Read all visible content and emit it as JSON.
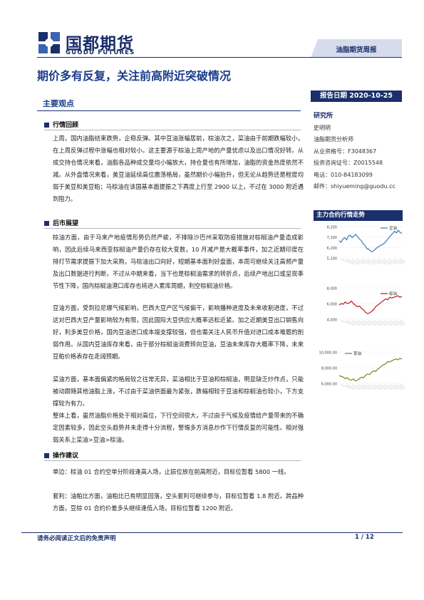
{
  "header": {
    "logo_cn": "国都期货",
    "logo_en": "GUODU FUTURES",
    "tag": "油脂期货周报",
    "title": "期价多有反复，关注前高附近突破情况",
    "colors": {
      "primary": "#1a2f6b",
      "accent": "#1a3c8a"
    }
  },
  "report_date": "报告日期 2020-10-25",
  "analyst": {
    "heading": "研究所",
    "name": "史明明",
    "role": "油脂期货分析师",
    "qualification": "从业资格号：F3048367",
    "consult": "投资咨询证号：Z0015548",
    "phone": "电话：010-84183099",
    "email": "邮件：shiyueming@guodu.cc"
  },
  "chart_section_title": "主力合约行情走势",
  "key_points_title": "主要观点",
  "sections": [
    {
      "title": "行情回顾",
      "paragraphs": [
        "上周，国内油脂结束跌势，企稳反弹。其中豆油涨幅居前，棕油次之，菜油由于前期跌幅较小，在上周反弹过程中涨幅也相对较小。这主要源于棕油上周产地的产量忧虑以及出口情况好转。从成交持仓情况来看，油脂各品种成交量均小幅放大，持仓量也有所增加，油脂的资金热度依然不减。从外盘情况来看，美豆油延续高位震荡格局，虽然期价小幅抬升，但无论从趋势还是程度均弱于美豆和美豆粕；马棕油在该国基本面提振之下再度上行至 2900 以上，不过在 3000 附近遇到阻力。"
      ]
    },
    {
      "title": "后市展望",
      "paragraphs": [
        "棕油方面，由于马来产地疫情形势仍然严峻，不排除沙巴州采取防疫措施对棕榈油产量造成影响，因此后续马来西亚棕榈油产量仍存在较大变数，10 月减产是大概率事件，加之近期印度在排灯节需求提振下加大采购，马棕油出口向好，短期基本面利好盘面，本周可继续关注高频产量及出口数据进行判断。不过从中期来看，当下也是棕榈油需求的转折点，后续产地出口或呈现季节性下降，国内棕榈油港口库存也将进入累库周期，利空棕榈油价格。",
        "豆油方面，受到拉尼娜气候影响，巴西大豆产区气候偏干，影响播种进度及未来收割进度，不过这对巴西大豆产量影响较为有限，因此国际大豆供应大概率远松近紧。加之近期美豆出口销售向好，利多美豆价格，国内豆油进口成本端支撑较强，但也需关注人民币升值对进口成本难题的削弱作用。从国内豆油库存来看，由于部分棕榈油消费转向豆油，豆油未来库存大概率下降，未来豆粕价格表存在走阔预期。",
        "菜油方面，基本面偏紧的格局较之往常无异，菜油相比于豆油和棕榈油，明显缺乏炒作点，只能被动跟随其他油脂上涨，不过由于菜油供面最为紧张，跌幅相较于豆油和棕榈油也较小，下方支撑较为有力。",
        "整体上看，虽然油脂价格处于相对高位，下行空间很大，不过由于气候及疫情给产量带来的不确定因素较多，因此空头趋势并未走得十分流程，警惕多方消息炒作下行情反复的可能性。相对强弱关系上菜油>豆油>棕油。"
      ]
    },
    {
      "title": "操作建议",
      "paragraphs": [
        "单边：棕油 01 合约空单分阶段逢高入场，止损位放在前高附近，目标位暂看 5800 一线。",
        "套利：油粕比方面，油粕比已有明显回落，空头套利可继续参与，目标位暂看 1.8 附近。跨品种方面，豆棕 01 合约价差多头继续逢低入场，目标位暂看 1200 附近。"
      ]
    }
  ],
  "charts": [
    {
      "legend": "豆油",
      "line_color": "#4a7fc1",
      "y_ticks": [
        "8,200",
        "7,200",
        "6,200",
        "5,200"
      ],
      "ylim": [
        5200,
        8200
      ]
    },
    {
      "legend": "棕油",
      "line_color": "#c0282d",
      "y_ticks": [
        "8,000",
        "6,000",
        "4,000"
      ],
      "ylim": [
        4000,
        8000
      ]
    },
    {
      "legend": "菜油",
      "line_color": "#7d8f32",
      "y_ticks": [
        "10,000.00",
        "8,000.00",
        "6,000.00"
      ],
      "ylim": [
        6000,
        10000
      ]
    }
  ],
  "footer": {
    "disclaimer": "请务必阅读正文后的免责声明",
    "page": "1 / 12"
  }
}
